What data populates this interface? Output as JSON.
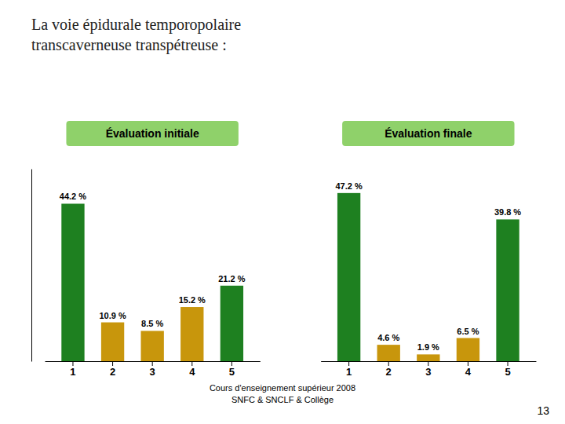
{
  "chart_data": {
    "type": "bar",
    "title": "La voie épidurale temporopolaire\ntranscaverneuse transpétreuse :",
    "categories": [
      "1",
      "2",
      "3",
      "4",
      "5"
    ],
    "series": [
      {
        "name": "Évaluation initiale",
        "values": [
          44.2,
          10.9,
          8.5,
          15.2,
          21.2
        ],
        "value_labels": [
          "44.2 %",
          "10.9 %",
          "8.5 %",
          "15.2 %",
          "21.2 %"
        ],
        "colors": [
          "#1e8020",
          "#c8960c",
          "#c8960c",
          "#c8960c",
          "#1e8020"
        ]
      },
      {
        "name": "Évaluation finale",
        "values": [
          47.2,
          4.6,
          1.9,
          6.5,
          39.8
        ],
        "value_labels": [
          "47.2 %",
          "4.6 %",
          "1.9 %",
          "6.5 %",
          "39.8 %"
        ],
        "colors": [
          "#1e8020",
          "#c8960c",
          "#c8960c",
          "#c8960c",
          "#1e8020"
        ]
      }
    ],
    "ylim": [
      0,
      54
    ],
    "tick_labels": "x",
    "data_labels": true,
    "grid": false,
    "annotations": [
      "Cours d'enseignement supérieur 2008",
      "SNFC & SNCLF & Collège",
      "13"
    ]
  }
}
